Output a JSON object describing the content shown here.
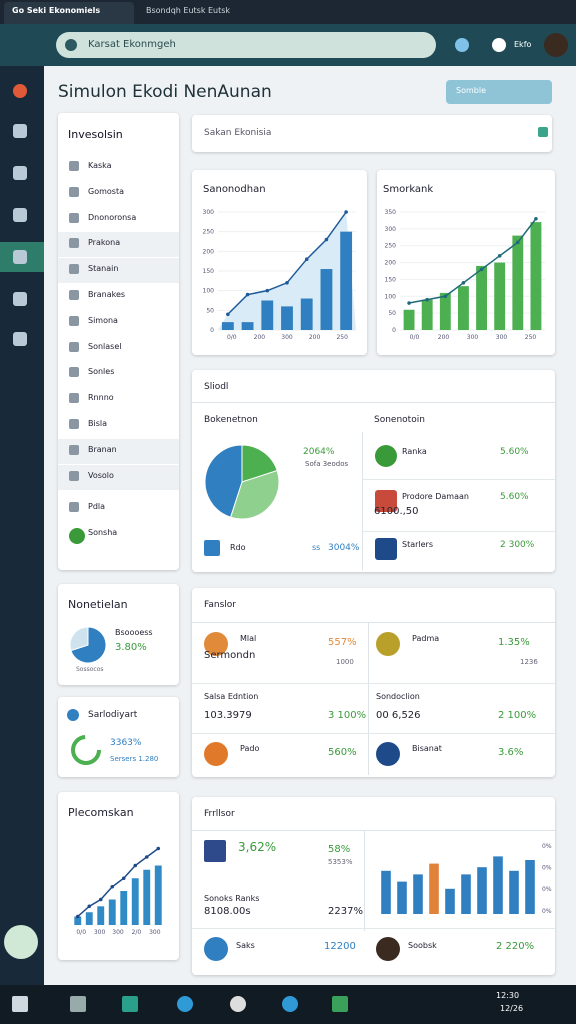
{
  "browser": {
    "tabs": [
      "Go Seki Ekonomiels",
      "Bsondqh Eutsk Eutsk"
    ],
    "search": "Karsat Ekonmgeh",
    "user": "Ekfo"
  },
  "header": {
    "title": "Simulon Ekodi NenAunan",
    "button": "Somble"
  },
  "nav": {
    "title": "Invesolsin",
    "items": [
      "Kaska",
      "Gomosta",
      "Dnonoronsa",
      "Prakona",
      "Stanain",
      "Branakes",
      "Simona",
      "Sonlasel",
      "Sonles",
      "Rnnno",
      "Bisla",
      "Branan",
      "Vosolo",
      "Pdla",
      "Sonsha"
    ]
  },
  "search_card": {
    "placeholder": "Sakan Ekonisia"
  },
  "charts": [
    {
      "title": "Sanonodhan",
      "ylim": [
        0,
        300
      ],
      "yticks": [
        0,
        50,
        100,
        150,
        200,
        250,
        300
      ],
      "categories": [
        "0/0",
        "200",
        "300",
        "200",
        "250"
      ],
      "bars": [
        20,
        20,
        75,
        60,
        80,
        155,
        250
      ],
      "line": [
        40,
        90,
        100,
        120,
        180,
        230,
        300
      ]
    },
    {
      "title": "Smorkank",
      "ylim": [
        0,
        350
      ],
      "yticks": [
        0,
        50,
        100,
        150,
        200,
        250,
        300,
        350
      ],
      "categories": [
        "0/0",
        "200",
        "300",
        "300",
        "250"
      ],
      "bars": [
        60,
        90,
        110,
        130,
        190,
        200,
        280,
        320
      ],
      "line": [
        80,
        90,
        100,
        140,
        180,
        220,
        260,
        330
      ]
    }
  ],
  "overview": {
    "title": "Sliodl",
    "left_title": "Bokenetnon",
    "right_title": "Sonenotoin",
    "pie": [
      20,
      35,
      45
    ],
    "pie_value": "2064%",
    "pie_note": "Sofa 3eodos",
    "legend": "Rdo",
    "legend_code": "ss",
    "legend_value": "3004%",
    "rows": [
      {
        "name": "Ranka",
        "value": "5.60%"
      },
      {
        "name": "Prodore Damaan",
        "sub": "6100.,50",
        "value": "5.60%"
      },
      {
        "name": "Starlers",
        "value": "2 300%"
      }
    ]
  },
  "summary": {
    "title": "Nonetielan",
    "label": "Bsoooess",
    "value": "3.80%",
    "note": "Sossocos",
    "donut": [
      70,
      30
    ]
  },
  "progress": {
    "title": "Sarlodiyart",
    "value": "3363%",
    "note": "Sersers 1.280"
  },
  "factors": {
    "title": "Fanslor",
    "rows": [
      {
        "name": "Mlal",
        "sub": "Sermondn",
        "value": "557%",
        "note": "1000"
      },
      {
        "name": "Padma",
        "value": "1.35%",
        "note": "1236"
      },
      {
        "name": "Salsa Edntion",
        "sub": "103.3979",
        "value": "3 100%"
      },
      {
        "name": "Sondoclion",
        "sub": "00 6,526",
        "value": "2 100%"
      },
      {
        "name": "Pado",
        "value": "560%"
      },
      {
        "name": "Bisanat",
        "value": "3.6%"
      }
    ]
  },
  "plecom": {
    "title": "Plecomskan",
    "ylim": [
      0,
      100
    ],
    "bars": [
      10,
      15,
      22,
      30,
      40,
      55,
      65,
      70
    ],
    "line": [
      10,
      22,
      30,
      45,
      55,
      70,
      80,
      90
    ],
    "categories": [
      "0/0",
      "300",
      "300",
      "2/0",
      "300"
    ]
  },
  "frrllsor": {
    "title": "Frrllsor",
    "rows": [
      {
        "name": "3,62%",
        "value": "58%",
        "note": "5353%"
      },
      {
        "name": "Sonoks Ranks",
        "sub": "8108.00s",
        "value": "2237%"
      },
      {
        "name": "Saks",
        "value": "12200"
      },
      {
        "name": "Soobsk",
        "value": "2 220%"
      }
    ],
    "ylim": [
      0,
      100
    ],
    "yticks": [
      "0%",
      "0%",
      "0%",
      "0%"
    ],
    "bars": [
      60,
      45,
      55,
      70,
      35,
      55,
      65,
      80,
      60,
      75
    ],
    "colors": [
      "#2f7fc1",
      "#2f7fc1",
      "#2f7fc1",
      "#e0823a",
      "#2f7fc1",
      "#2f7fc1",
      "#2f7fc1",
      "#2f7fc1",
      "#2f7fc1",
      "#2f7fc1"
    ]
  },
  "taskbar": {
    "time": "12:30",
    "date": "12/26"
  }
}
